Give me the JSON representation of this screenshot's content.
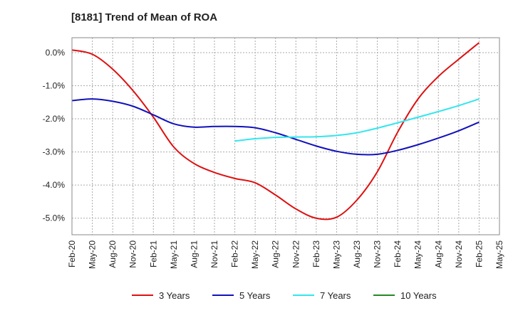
{
  "chart_data": {
    "type": "line",
    "title": "[8181]  Trend of Mean of ROA",
    "xlabel": "",
    "ylabel": "",
    "x_ticks": [
      "Feb-20",
      "May-20",
      "Aug-20",
      "Nov-20",
      "Feb-21",
      "May-21",
      "Aug-21",
      "Nov-21",
      "Feb-22",
      "May-22",
      "Aug-22",
      "Nov-22",
      "Feb-23",
      "May-23",
      "Aug-23",
      "Nov-23",
      "Feb-24",
      "May-24",
      "Aug-24",
      "Nov-24",
      "Feb-25",
      "May-25"
    ],
    "y_ticks": [
      "0.0%",
      "-1.0%",
      "-2.0%",
      "-3.0%",
      "-4.0%",
      "-5.0%"
    ],
    "y_tick_values": [
      0,
      -1,
      -2,
      -3,
      -4,
      -5
    ],
    "ylim": [
      -5.5,
      0.45
    ],
    "grid": true,
    "legend_position": "bottom",
    "series": [
      {
        "name": "3 Years",
        "color": "#dd1111",
        "points": [
          [
            "Feb-20",
            0.08
          ],
          [
            "May-20",
            -0.05
          ],
          [
            "Aug-20",
            -0.5
          ],
          [
            "Nov-20",
            -1.15
          ],
          [
            "Feb-21",
            -1.95
          ],
          [
            "May-21",
            -2.85
          ],
          [
            "Aug-21",
            -3.35
          ],
          [
            "Nov-21",
            -3.62
          ],
          [
            "Feb-22",
            -3.8
          ],
          [
            "May-22",
            -3.93
          ],
          [
            "Aug-22",
            -4.3
          ],
          [
            "Nov-22",
            -4.72
          ],
          [
            "Feb-23",
            -5.0
          ],
          [
            "May-23",
            -4.97
          ],
          [
            "Aug-23",
            -4.45
          ],
          [
            "Nov-23",
            -3.6
          ],
          [
            "Feb-24",
            -2.4
          ],
          [
            "May-24",
            -1.4
          ],
          [
            "Aug-24",
            -0.72
          ],
          [
            "Nov-24",
            -0.2
          ],
          [
            "Feb-25",
            0.3
          ]
        ]
      },
      {
        "name": "5 Years",
        "color": "#1111bb",
        "points": [
          [
            "Feb-20",
            -1.45
          ],
          [
            "May-20",
            -1.4
          ],
          [
            "Aug-20",
            -1.47
          ],
          [
            "Nov-20",
            -1.62
          ],
          [
            "Feb-21",
            -1.88
          ],
          [
            "May-21",
            -2.15
          ],
          [
            "Aug-21",
            -2.25
          ],
          [
            "Nov-21",
            -2.23
          ],
          [
            "Feb-22",
            -2.23
          ],
          [
            "May-22",
            -2.27
          ],
          [
            "Aug-22",
            -2.42
          ],
          [
            "Nov-22",
            -2.62
          ],
          [
            "Feb-23",
            -2.82
          ],
          [
            "May-23",
            -2.98
          ],
          [
            "Aug-23",
            -3.07
          ],
          [
            "Nov-23",
            -3.07
          ],
          [
            "Feb-24",
            -2.95
          ],
          [
            "May-24",
            -2.78
          ],
          [
            "Aug-24",
            -2.58
          ],
          [
            "Nov-24",
            -2.36
          ],
          [
            "Feb-25",
            -2.1
          ]
        ]
      },
      {
        "name": "7 Years",
        "color": "#33e6ee",
        "points": [
          [
            "Feb-22",
            -2.67
          ],
          [
            "May-22",
            -2.6
          ],
          [
            "Aug-22",
            -2.56
          ],
          [
            "Nov-22",
            -2.55
          ],
          [
            "Feb-23",
            -2.54
          ],
          [
            "May-23",
            -2.5
          ],
          [
            "Aug-23",
            -2.42
          ],
          [
            "Nov-23",
            -2.28
          ],
          [
            "Feb-24",
            -2.12
          ],
          [
            "May-24",
            -1.95
          ],
          [
            "Aug-24",
            -1.78
          ],
          [
            "Nov-24",
            -1.6
          ],
          [
            "Feb-25",
            -1.4
          ]
        ]
      },
      {
        "name": "10 Years",
        "color": "#228b22",
        "points": []
      }
    ]
  }
}
